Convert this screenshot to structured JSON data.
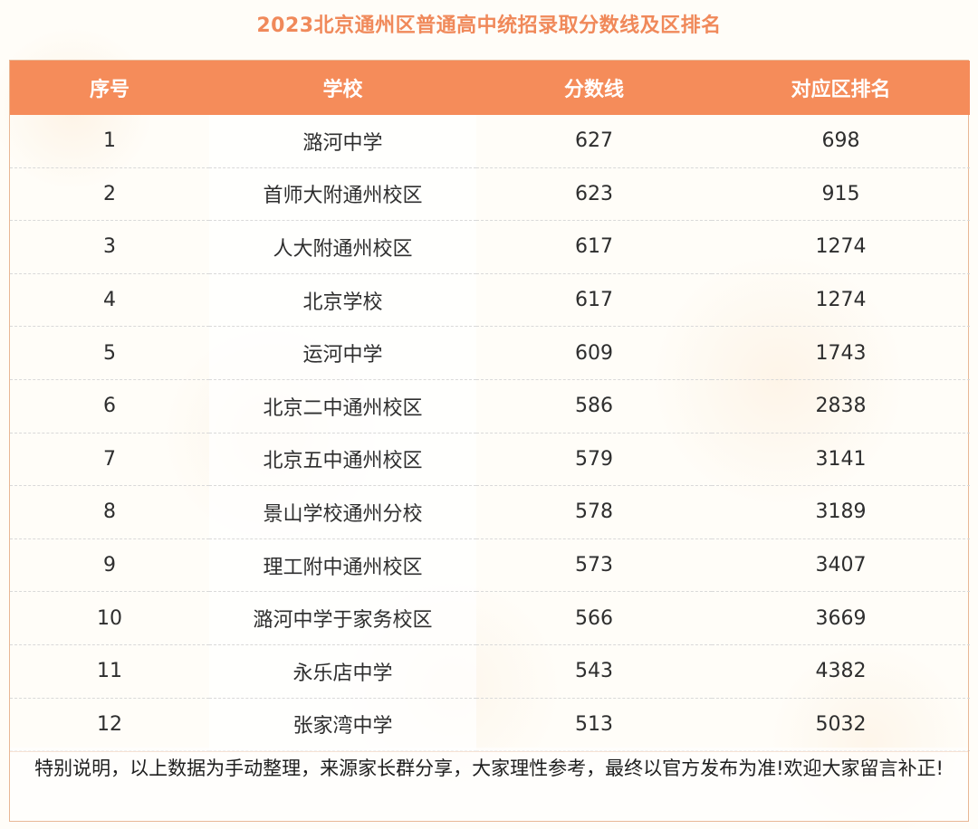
{
  "title": "2023北京通州区普通高中统招录取分数线及区排名",
  "table": {
    "headers": [
      "序号",
      "学校",
      "分数线",
      "对应区排名"
    ],
    "rows": [
      {
        "no": "1",
        "school": "潞河中学",
        "score": "627",
        "rank": "698"
      },
      {
        "no": "2",
        "school": "首师大附通州校区",
        "score": "623",
        "rank": "915"
      },
      {
        "no": "3",
        "school": "人大附通州校区",
        "score": "617",
        "rank": "1274"
      },
      {
        "no": "4",
        "school": "北京学校",
        "score": "617",
        "rank": "1274"
      },
      {
        "no": "5",
        "school": "运河中学",
        "score": "609",
        "rank": "1743"
      },
      {
        "no": "6",
        "school": "北京二中通州校区",
        "score": "586",
        "rank": "2838"
      },
      {
        "no": "7",
        "school": "北京五中通州校区",
        "score": "579",
        "rank": "3141"
      },
      {
        "no": "8",
        "school": "景山学校通州分校",
        "score": "578",
        "rank": "3189"
      },
      {
        "no": "9",
        "school": "理工附中通州校区",
        "score": "573",
        "rank": "3407"
      },
      {
        "no": "10",
        "school": "潞河中学于家务校区",
        "score": "566",
        "rank": "3669"
      },
      {
        "no": "11",
        "school": "永乐店中学",
        "score": "543",
        "rank": "4382"
      },
      {
        "no": "12",
        "school": "张家湾中学",
        "score": "513",
        "rank": "5032"
      }
    ]
  },
  "note": "特别说明，以上数据为手动整理，来源家长群分享，大家理性参考，最终以官方发布为准!欢迎大家留言补正!",
  "colors": {
    "header_bg": "#f58c5a",
    "title_color": "#f0895a"
  }
}
